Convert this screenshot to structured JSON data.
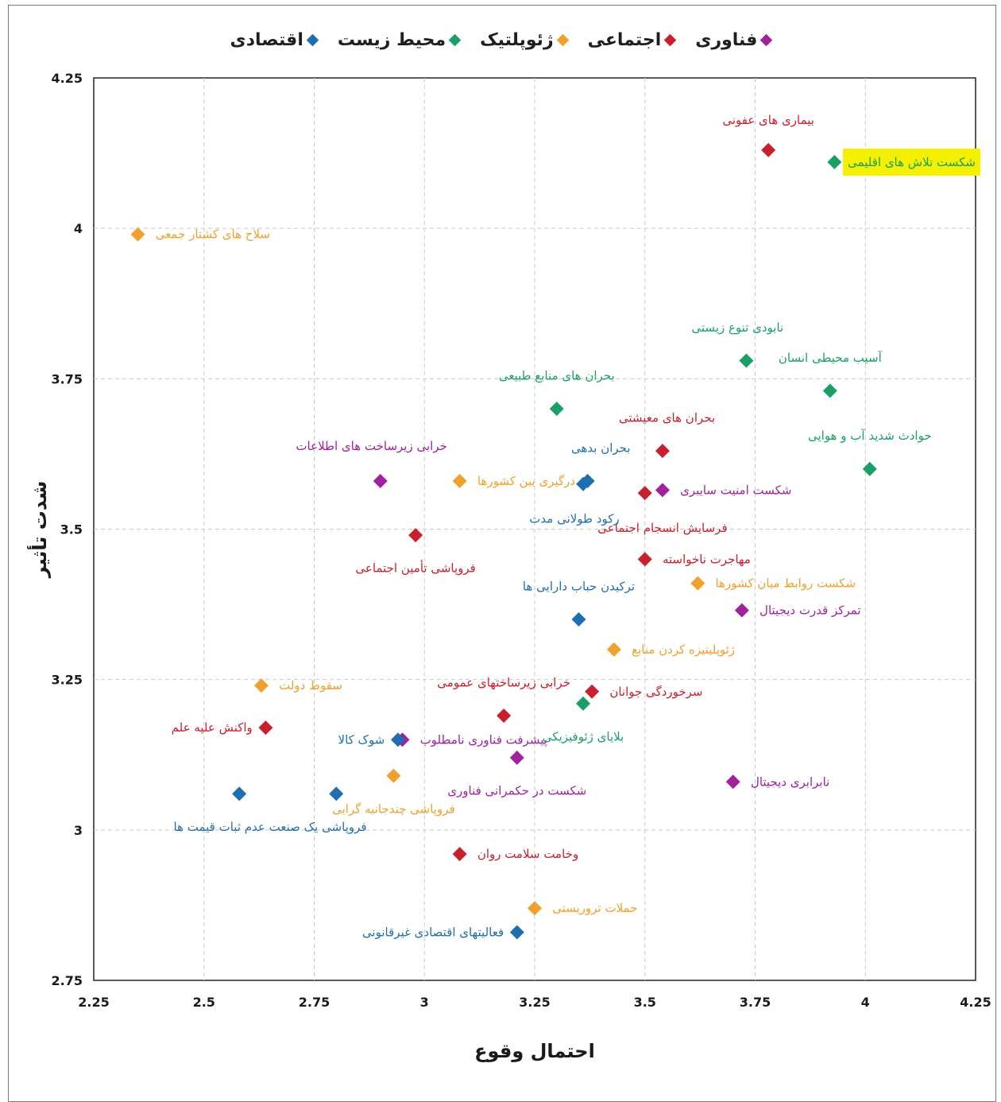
{
  "chart_data": {
    "type": "scatter",
    "xlabel": "احتمال وقوع",
    "ylabel": "شدت تأثیر",
    "xlim": [
      2.25,
      4.25
    ],
    "ylim": [
      2.75,
      4.25
    ],
    "xticks": [
      "2.25",
      "2.5",
      "2.75",
      "3",
      "3.25",
      "3.5",
      "3.75",
      "4",
      "4.25"
    ],
    "yticks": [
      "4.25",
      "4",
      "3.75",
      "3.5",
      "3.25",
      "3",
      "2.75"
    ],
    "grid": true,
    "legend_position": "top-center",
    "series": [
      {
        "name": "فناوری",
        "color": "#a0229c",
        "points": [
          {
            "x": 2.9,
            "y": 3.58,
            "label": "خرابی زیرساخت های اطلاعات",
            "lx": -0.02,
            "ly": 0.058
          },
          {
            "x": 3.54,
            "y": 3.565,
            "label": "شکست امنیت سایبری",
            "lx": 0.04,
            "ly": 0.0
          },
          {
            "x": 3.72,
            "y": 3.365,
            "label": "تمرکز قدرت دیجیتال",
            "lx": 0.04,
            "ly": 0.0
          },
          {
            "x": 2.95,
            "y": 3.15,
            "label": "پیشرفت فناوری نامطلوب",
            "lx": 0.04,
            "ly": 0.0
          },
          {
            "x": 3.21,
            "y": 3.12,
            "label": "شکست در حکمرانی فناوری",
            "lx": 0.0,
            "ly": -0.055
          },
          {
            "x": 3.7,
            "y": 3.08,
            "label": "نابرابری دیجیتال",
            "lx": 0.04,
            "ly": 0.0
          }
        ]
      },
      {
        "name": "اجتماعی",
        "color": "#c8202e",
        "points": [
          {
            "x": 3.78,
            "y": 4.13,
            "label": "بیماری های عفونی",
            "lx": 0.0,
            "ly": 0.05
          },
          {
            "x": 3.54,
            "y": 3.63,
            "label": "بحران های معیشتی",
            "lx": 0.01,
            "ly": 0.055
          },
          {
            "x": 3.5,
            "y": 3.56,
            "label": "فرسایش انسجام اجتماعی",
            "lx": 0.04,
            "ly": -0.058
          },
          {
            "x": 2.98,
            "y": 3.49,
            "label": "فروپاشی تأمین اجتماعی",
            "lx": 0.0,
            "ly": -0.055
          },
          {
            "x": 3.5,
            "y": 3.45,
            "label": "مهاجرت ناخواسته",
            "lx": 0.04,
            "ly": 0.0
          },
          {
            "x": 3.38,
            "y": 3.23,
            "label": "سرخوردگی جوانان",
            "lx": 0.04,
            "ly": 0.0
          },
          {
            "x": 3.18,
            "y": 3.19,
            "label": "خرابی زیرساختهای عمومی",
            "lx": 0.0,
            "ly": 0.055
          },
          {
            "x": 2.64,
            "y": 3.17,
            "label": "واکنش علیه علم",
            "lx": -0.03,
            "ly": 0.0
          },
          {
            "x": 3.08,
            "y": 2.96,
            "label": "وخامت سلامت روان",
            "lx": 0.04,
            "ly": 0.0
          }
        ]
      },
      {
        "name": "ژئوپلتیک",
        "color": "#f0a12b",
        "points": [
          {
            "x": 2.35,
            "y": 3.99,
            "label": "سلاح های کشتار جمعی",
            "lx": 0.04,
            "ly": 0.0
          },
          {
            "x": 3.08,
            "y": 3.58,
            "label": "درگیری بین کشورها",
            "lx": 0.04,
            "ly": 0.0
          },
          {
            "x": 3.62,
            "y": 3.41,
            "label": "شکست روابط میان کشورها",
            "lx": 0.04,
            "ly": 0.0
          },
          {
            "x": 3.43,
            "y": 3.3,
            "label": "ژئوپلیتیزه کردن منابع",
            "lx": 0.04,
            "ly": 0.0
          },
          {
            "x": 2.63,
            "y": 3.24,
            "label": "سقوط دولت",
            "lx": 0.04,
            "ly": 0.0
          },
          {
            "x": 2.93,
            "y": 3.09,
            "label": "فروپاشی چندجانبه گرایی",
            "lx": 0.0,
            "ly": -0.055
          },
          {
            "x": 3.25,
            "y": 2.87,
            "label": "حملات تروریستی",
            "lx": 0.04,
            "ly": 0.0
          }
        ]
      },
      {
        "name": "محیط زیست",
        "color": "#1aa067",
        "points": [
          {
            "x": 3.93,
            "y": 4.11,
            "label": "شکست تلاش های اقلیمی",
            "lx": 0.03,
            "ly": 0.0,
            "highlight": true
          },
          {
            "x": 3.73,
            "y": 3.78,
            "label": "نابودی تنوع زیستی",
            "lx": -0.02,
            "ly": 0.055
          },
          {
            "x": 3.92,
            "y": 3.73,
            "label": "آسیب محیطی انسان",
            "lx": 0.0,
            "ly": 0.055
          },
          {
            "x": 3.3,
            "y": 3.7,
            "label": "بحران های منابع طبیعی",
            "lx": 0.0,
            "ly": 0.055
          },
          {
            "x": 4.01,
            "y": 3.6,
            "label": "حوادث شدید آب و هوایی",
            "lx": 0.0,
            "ly": 0.055
          },
          {
            "x": 3.36,
            "y": 3.21,
            "label": "بلایای ژئوفیزیکی",
            "lx": 0.0,
            "ly": -0.055
          }
        ]
      },
      {
        "name": "اقتصادی",
        "color": "#1f6fb0",
        "points": [
          {
            "x": 3.37,
            "y": 3.58,
            "label": "بحران بدهی",
            "lx": 0.03,
            "ly": 0.055
          },
          {
            "x": 3.36,
            "y": 3.575,
            "label": "رکود طولانی مدت",
            "lx": -0.02,
            "ly": -0.058
          },
          {
            "x": 3.35,
            "y": 3.35,
            "label": "ترکیدن حباب دارایی ها",
            "lx": 0.0,
            "ly": 0.055
          },
          {
            "x": 2.94,
            "y": 3.15,
            "label": "شوک کالا",
            "lx": -0.03,
            "ly": 0.0
          },
          {
            "x": 2.58,
            "y": 3.06,
            "label": "",
            "lx": 0.0,
            "ly": 0.0
          },
          {
            "x": 2.8,
            "y": 3.06,
            "label": "فروپاشی یک صنعت عدم ثبات قیمت ها",
            "lx": -0.15,
            "ly": -0.055
          },
          {
            "x": 3.21,
            "y": 2.83,
            "label": "فعالیتهای اقتصادی غیرقانونی",
            "lx": -0.03,
            "ly": 0.0
          }
        ]
      }
    ]
  }
}
